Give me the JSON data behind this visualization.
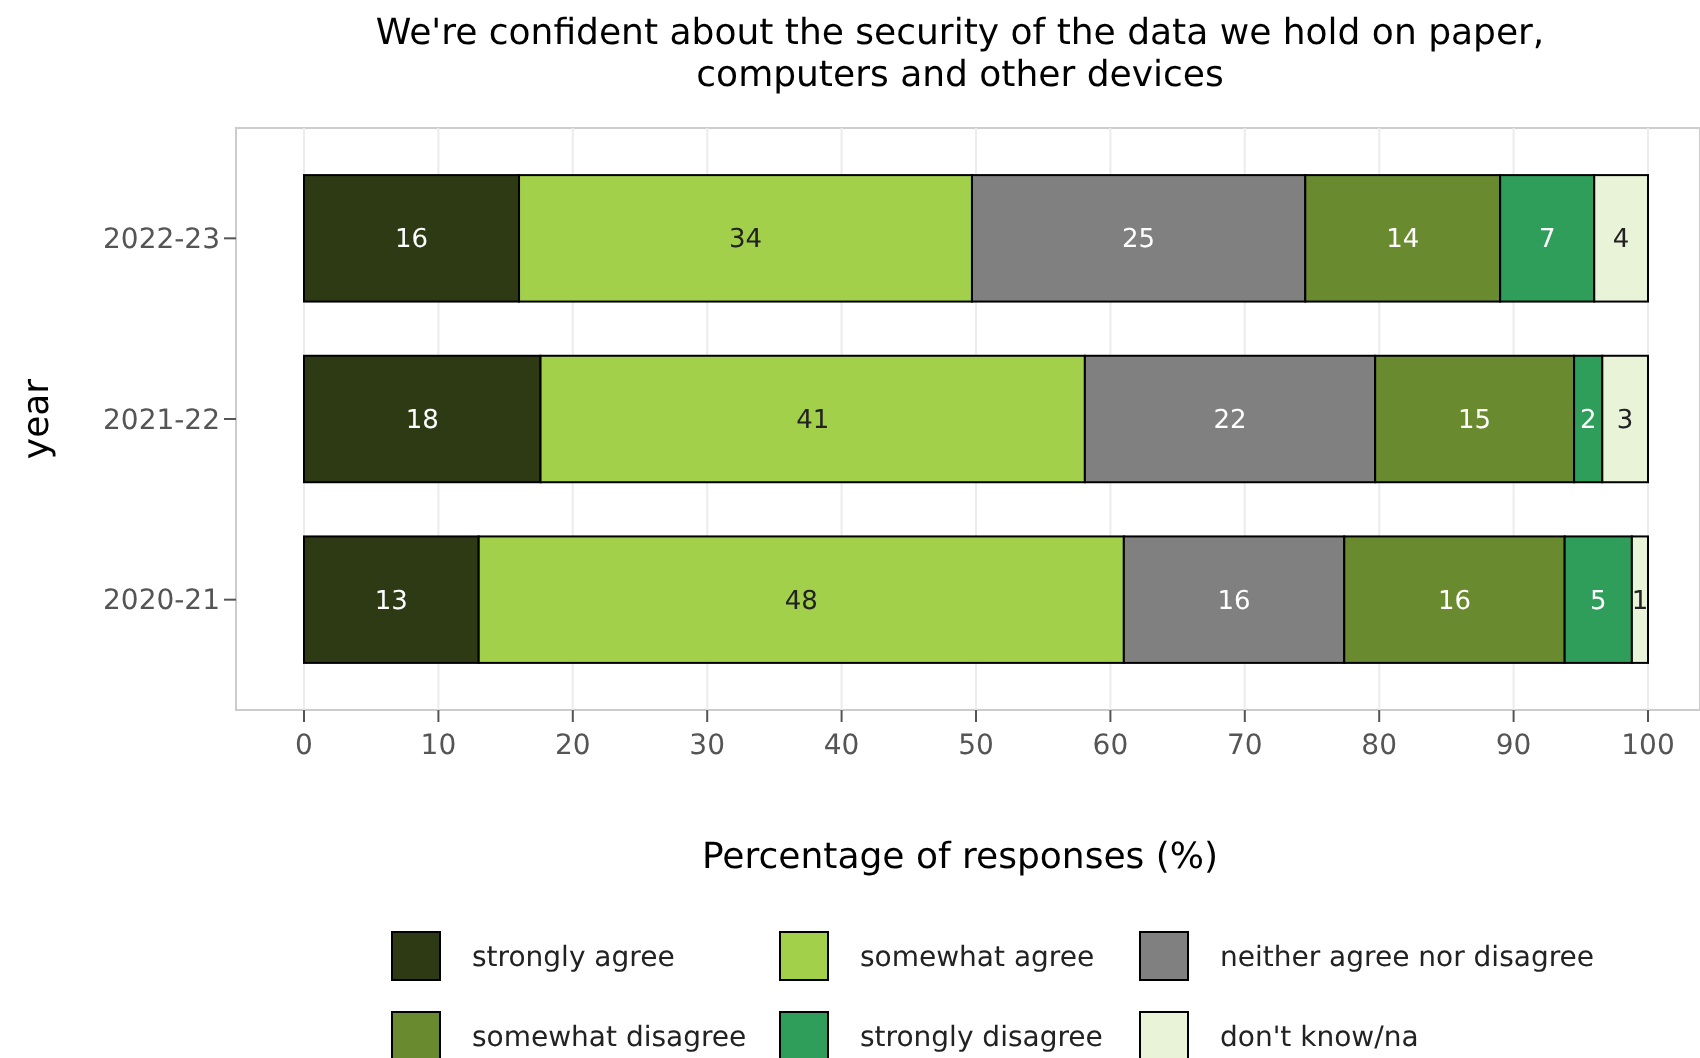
{
  "chart_data": {
    "type": "bar",
    "orientation": "horizontal",
    "stacked": true,
    "title": "We're confident about the security of the data we hold on paper, computers and other devices",
    "xlabel": "Percentage of responses (%)",
    "ylabel": "year",
    "categories": [
      "2022-23",
      "2021-22",
      "2020-21"
    ],
    "xlim": [
      0,
      100
    ],
    "xticks": [
      0,
      10,
      20,
      30,
      40,
      50,
      60,
      70,
      80,
      90,
      100
    ],
    "grid": "x",
    "legend": "bottom",
    "series": [
      {
        "name": "strongly agree",
        "color": "#2d3a14",
        "values": [
          16,
          17.6,
          13
        ],
        "value_labels": [
          "16",
          "18",
          "13"
        ]
      },
      {
        "name": "somewhat agree",
        "color": "#a3d04a",
        "values": [
          33.7,
          40.5,
          48
        ],
        "value_labels": [
          "34",
          "41",
          "48"
        ]
      },
      {
        "name": "neither agree nor disagree",
        "color": "#808080",
        "values": [
          24.8,
          21.6,
          16.4
        ],
        "value_labels": [
          "25",
          "22",
          "16"
        ]
      },
      {
        "name": "somewhat disagree",
        "color": "#6a8a30",
        "values": [
          14.5,
          14.8,
          16.4
        ],
        "value_labels": [
          "14",
          "15",
          "16"
        ]
      },
      {
        "name": "strongly disagree",
        "color": "#2e9e5a",
        "values": [
          7,
          2.1,
          5
        ],
        "value_labels": [
          "7",
          "2",
          "5"
        ]
      },
      {
        "name": "don't know/na",
        "color": "#e8f3d8",
        "values": [
          4,
          3.4,
          1.2
        ],
        "value_labels": [
          "4",
          "3",
          "1"
        ]
      }
    ]
  }
}
